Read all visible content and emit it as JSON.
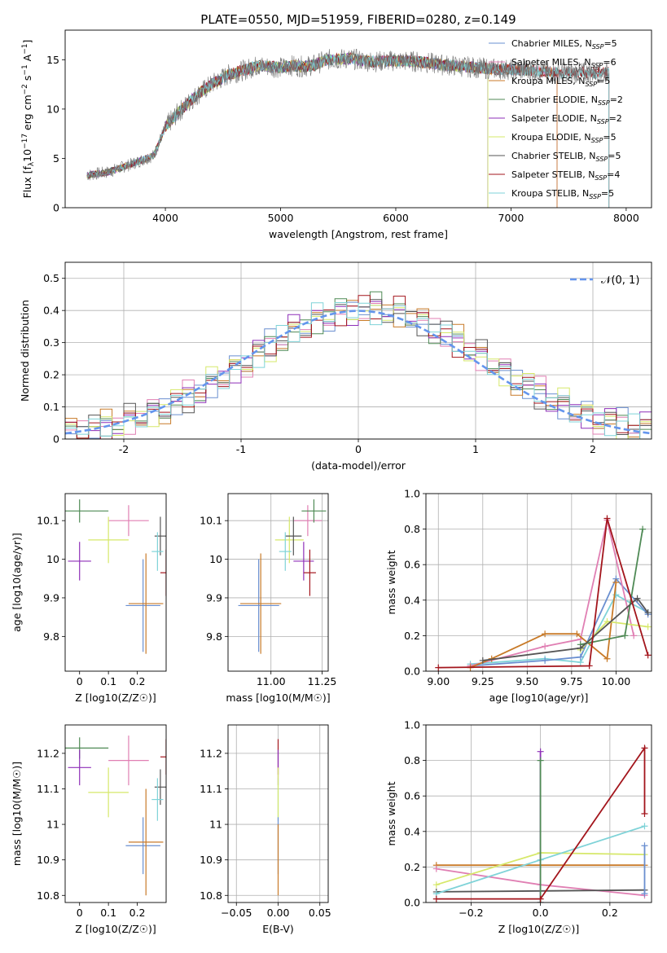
{
  "figure": {
    "title": "PLATE=0550, MJD=51959, FIBERID=0280, z=0.149"
  },
  "colors": {
    "Chabrier MILES": "#6a8fd0",
    "Salpeter MILES": "#e07fb3",
    "Kroupa MILES": "#c87a28",
    "Chabrier ELODIE": "#4f8a55",
    "Salpeter ELODIE": "#8e2fb8",
    "Kroupa ELODIE": "#d6e86a",
    "Chabrier STELIB": "#555555",
    "Salpeter STELIB": "#a3151c",
    "Kroupa STELIB": "#7fd3d8",
    "normal_curve": "#6495ed",
    "spectrum_gray": "#777777"
  },
  "chart_data": [
    {
      "id": "spectrum",
      "type": "line",
      "xlabel": "wavelength [Angstrom, rest frame]",
      "ylabel_parts": [
        "Flux [f",
        "λ",
        "10",
        "−17",
        " erg cm",
        "−2",
        " s",
        "−1",
        " A",
        "−1",
        "]"
      ],
      "xlim": [
        3130,
        8220
      ],
      "ylim": [
        0,
        18
      ],
      "xticks": [
        4000,
        5000,
        6000,
        7000,
        8000
      ],
      "yticks": [
        0,
        5,
        10,
        15
      ],
      "grid": false,
      "legend_position": "upper-right",
      "continuum": {
        "x": [
          3320,
          3500,
          3700,
          3900,
          4000,
          4100,
          4250,
          4400,
          4550,
          4700,
          4800,
          4900,
          5000,
          5100,
          5200,
          5300,
          5400,
          5600,
          5800,
          6000,
          6200,
          6400,
          6600,
          6800,
          7000,
          7200,
          7400
        ],
        "y": [
          3.3,
          3.6,
          4.4,
          5.3,
          8.2,
          9.5,
          11.2,
          12.5,
          13.5,
          14.0,
          14.4,
          14.3,
          14.2,
          14.4,
          14.3,
          14.5,
          15.0,
          15.1,
          14.8,
          14.9,
          14.8,
          14.5,
          14.3,
          14.1,
          14.0,
          13.9,
          13.7
        ]
      },
      "series": [
        {
          "name_main": "Chabrier MILES",
          "name_sub": "SSP",
          "name_tail": "=5",
          "end": 7400
        },
        {
          "name_main": "Salpeter MILES",
          "name_sub": "SSP",
          "name_tail": "=6",
          "end": 7400
        },
        {
          "name_main": "Kroupa MILES",
          "name_sub": "SSP",
          "name_tail": "=5",
          "end": 7400
        },
        {
          "name_main": "Chabrier ELODIE",
          "name_sub": "SSP",
          "name_tail": "=2",
          "end": 6800
        },
        {
          "name_main": "Salpeter ELODIE",
          "name_sub": "SSP",
          "name_tail": "=2",
          "end": 6800
        },
        {
          "name_main": "Kroupa ELODIE",
          "name_sub": "SSP",
          "name_tail": "=5",
          "end": 6800
        },
        {
          "name_main": "Chabrier STELIB",
          "name_sub": "SSP",
          "name_tail": "=5",
          "end": 7850
        },
        {
          "name_main": "Salpeter STELIB",
          "name_sub": "SSP",
          "name_tail": "=4",
          "end": 7850
        },
        {
          "name_main": "Kroupa STELIB",
          "name_sub": "SSP",
          "name_tail": "=5",
          "end": 7850
        }
      ]
    },
    {
      "id": "residuals",
      "type": "histogram",
      "xlabel": "(data-model)/error",
      "ylabel": "Normed distribution",
      "xlim": [
        -2.5,
        2.5
      ],
      "ylim": [
        0,
        0.55
      ],
      "xticks": [
        -2,
        -1,
        0,
        1,
        2
      ],
      "yticks": [
        0.0,
        0.1,
        0.2,
        0.3,
        0.4,
        0.5
      ],
      "grid": true,
      "legend_position": "upper-right",
      "normal_label": "𝒩(0, 1)",
      "bin_width": 0.1,
      "bin_start": -2.5,
      "bin_jitter": [
        0.0,
        0.015,
        -0.02,
        0.02,
        -0.01,
        0.025,
        -0.015,
        0.01,
        0.03,
        -0.025,
        0.005,
        0.02,
        -0.03,
        0.015,
        0.04,
        -0.02,
        0.01,
        0.05,
        -0.01,
        0.03,
        -0.015,
        0.02,
        -0.035,
        0.01,
        0.025,
        -0.01,
        0.015,
        -0.005,
        0.03,
        -0.02
      ]
    },
    {
      "id": "age-vs-Z",
      "type": "errorbar",
      "xlabel": "Z [log10(Z/Z☉)]",
      "ylabel": "age  [log10(age/yr)]",
      "xlim": [
        -0.05,
        0.3
      ],
      "ylim": [
        9.71,
        10.17
      ],
      "xticks": [
        0.0,
        0.1,
        0.2
      ],
      "yticks": [
        9.8,
        9.9,
        10.0,
        10.1
      ],
      "grid": false,
      "points": [
        {
          "series": "Chabrier MILES",
          "x": 0.22,
          "y": 9.88,
          "xerr": 0.06,
          "yerr": 0.12
        },
        {
          "series": "Salpeter MILES",
          "x": 0.17,
          "y": 10.1,
          "xerr": 0.07,
          "yerr": 0.04
        },
        {
          "series": "Kroupa MILES",
          "x": 0.23,
          "y": 9.885,
          "xerr": 0.06,
          "yerr": 0.13
        },
        {
          "series": "Chabrier ELODIE",
          "x": 0.0,
          "y": 10.125,
          "xerr": 0.1,
          "yerr": 0.03
        },
        {
          "series": "Salpeter ELODIE",
          "x": 0.0,
          "y": 9.995,
          "xerr": 0.04,
          "yerr": 0.05
        },
        {
          "series": "Kroupa ELODIE",
          "x": 0.1,
          "y": 10.05,
          "xerr": 0.07,
          "yerr": 0.06
        },
        {
          "series": "Chabrier STELIB",
          "x": 0.28,
          "y": 10.06,
          "xerr": 0.02,
          "yerr": 0.05
        },
        {
          "series": "Salpeter STELIB",
          "x": 0.3,
          "y": 9.965,
          "xerr": 0.02,
          "yerr": 0.06
        },
        {
          "series": "Kroupa STELIB",
          "x": 0.27,
          "y": 10.02,
          "xerr": 0.02,
          "yerr": 0.05
        }
      ]
    },
    {
      "id": "age-vs-mass",
      "type": "errorbar",
      "xlabel": "mass [log10(M/M☉)]",
      "ylabel": "",
      "xlim": [
        10.79,
        11.28
      ],
      "ylim": [
        9.71,
        10.17
      ],
      "xticks": [
        11.0,
        11.25
      ],
      "xtick_labels": [
        "11.00",
        "11.25"
      ],
      "yticks": [
        9.8,
        9.9,
        10.0,
        10.1
      ],
      "grid": true,
      "points": [
        {
          "series": "Chabrier MILES",
          "x": 10.94,
          "y": 9.88,
          "xerr": 0.1,
          "yerr": 0.12
        },
        {
          "series": "Kroupa MILES",
          "x": 10.95,
          "y": 9.885,
          "xerr": 0.1,
          "yerr": 0.13
        },
        {
          "series": "Salpeter MILES",
          "x": 11.18,
          "y": 10.1,
          "xerr": 0.07,
          "yerr": 0.04
        },
        {
          "series": "Chabrier ELODIE",
          "x": 11.21,
          "y": 10.125,
          "xerr": 0.06,
          "yerr": 0.03
        },
        {
          "series": "Kroupa ELODIE",
          "x": 11.09,
          "y": 10.05,
          "xerr": 0.07,
          "yerr": 0.06
        },
        {
          "series": "Salpeter ELODIE",
          "x": 11.16,
          "y": 9.995,
          "xerr": 0.05,
          "yerr": 0.05
        },
        {
          "series": "Chabrier STELIB",
          "x": 11.11,
          "y": 10.06,
          "xerr": 0.04,
          "yerr": 0.05
        },
        {
          "series": "Salpeter STELIB",
          "x": 11.19,
          "y": 9.965,
          "xerr": 0.03,
          "yerr": 0.06
        },
        {
          "series": "Kroupa STELIB",
          "x": 11.07,
          "y": 10.02,
          "xerr": 0.03,
          "yerr": 0.05
        }
      ]
    },
    {
      "id": "weight-vs-age",
      "type": "line",
      "xlabel": "age  [log10(age/yr)]",
      "ylabel": "mass weight",
      "xlim": [
        8.93,
        10.2
      ],
      "ylim": [
        0,
        1.0
      ],
      "xticks": [
        9.0,
        9.25,
        9.5,
        9.75,
        10.0
      ],
      "xtick_labels": [
        "9.00",
        "9.25",
        "9.50",
        "9.75",
        "10.00"
      ],
      "yticks": [
        0,
        0.2,
        0.4,
        0.6,
        0.8,
        1.0
      ],
      "ytick_labels": [
        "0.0",
        "0.2",
        "0.4",
        "0.6",
        "0.8",
        "1.0"
      ],
      "grid": true,
      "series": [
        {
          "name": "Kroupa STELIB",
          "x": [
            9.18,
            9.6,
            9.8,
            10.0,
            10.18
          ],
          "y": [
            0.04,
            0.07,
            0.05,
            0.43,
            0.33
          ]
        },
        {
          "name": "Chabrier MILES",
          "x": [
            9.18,
            9.6,
            9.8,
            10.0,
            10.18
          ],
          "y": [
            0.03,
            0.06,
            0.08,
            0.52,
            0.32
          ]
        },
        {
          "name": "Salpeter MILES",
          "x": [
            9.18,
            9.6,
            9.8,
            9.95,
            10.1
          ],
          "y": [
            0.03,
            0.14,
            0.18,
            0.85,
            0.2
          ]
        },
        {
          "name": "Kroupa MILES",
          "x": [
            9.18,
            9.3,
            9.6,
            9.78,
            9.95,
            10.0
          ],
          "y": [
            0.02,
            0.07,
            0.21,
            0.21,
            0.07,
            0.5
          ]
        },
        {
          "name": "Kroupa ELODIE",
          "x": [
            9.8,
            9.95,
            10.18
          ],
          "y": [
            0.12,
            0.28,
            0.25
          ]
        },
        {
          "name": "Chabrier ELODIE",
          "x": [
            9.8,
            10.05,
            10.15
          ],
          "y": [
            0.15,
            0.2,
            0.8
          ]
        },
        {
          "name": "Chabrier STELIB",
          "x": [
            9.25,
            9.8,
            10.12,
            10.18
          ],
          "y": [
            0.06,
            0.13,
            0.41,
            0.33
          ]
        },
        {
          "name": "Salpeter STELIB",
          "x": [
            9.0,
            9.85,
            9.95,
            10.18
          ],
          "y": [
            0.02,
            0.03,
            0.86,
            0.09
          ]
        }
      ]
    },
    {
      "id": "mass-vs-Z",
      "type": "errorbar",
      "xlabel": "Z [log10(Z/Z☉)]",
      "ylabel": "mass [log10(M/M☉)]",
      "xlim": [
        -0.05,
        0.3
      ],
      "ylim": [
        10.78,
        11.28
      ],
      "xticks": [
        0.0,
        0.1,
        0.2
      ],
      "yticks": [
        10.8,
        10.9,
        11.0,
        11.1,
        11.2
      ],
      "grid": false,
      "points": [
        {
          "series": "Chabrier MILES",
          "x": 0.22,
          "y": 10.94,
          "xerr": 0.06,
          "yerr": 0.08
        },
        {
          "series": "Kroupa MILES",
          "x": 0.23,
          "y": 10.95,
          "xerr": 0.06,
          "yerr": 0.15
        },
        {
          "series": "Salpeter MILES",
          "x": 0.17,
          "y": 11.18,
          "xerr": 0.07,
          "yerr": 0.07
        },
        {
          "series": "Chabrier ELODIE",
          "x": 0.0,
          "y": 11.215,
          "xerr": 0.1,
          "yerr": 0.03
        },
        {
          "series": "Salpeter ELODIE",
          "x": 0.0,
          "y": 11.16,
          "xerr": 0.04,
          "yerr": 0.05
        },
        {
          "series": "Kroupa ELODIE",
          "x": 0.1,
          "y": 11.09,
          "xerr": 0.07,
          "yerr": 0.07
        },
        {
          "series": "Chabrier STELIB",
          "x": 0.28,
          "y": 11.105,
          "xerr": 0.02,
          "yerr": 0.05
        },
        {
          "series": "Salpeter STELIB",
          "x": 0.3,
          "y": 11.19,
          "xerr": 0.02,
          "yerr": 0.05
        },
        {
          "series": "Kroupa STELIB",
          "x": 0.27,
          "y": 11.07,
          "xerr": 0.02,
          "yerr": 0.06
        }
      ]
    },
    {
      "id": "mass-vs-ebv",
      "type": "errorbar",
      "xlabel": "E(B-V)",
      "ylabel": "",
      "xlim": [
        -0.06,
        0.06
      ],
      "ylim": [
        10.78,
        11.28
      ],
      "xticks": [
        -0.05,
        0.0,
        0.05
      ],
      "xtick_labels": [
        "−0.05",
        "0.00",
        "0.05"
      ],
      "yticks": [
        10.8,
        10.9,
        11.0,
        11.1,
        11.2
      ],
      "grid": true,
      "points": [
        {
          "series": "Salpeter STELIB",
          "x": 0.0,
          "y": 11.19,
          "xerr": 0.0,
          "yerr": 0.05
        },
        {
          "series": "Salpeter ELODIE",
          "x": 0.0,
          "y": 11.16,
          "xerr": 0.0,
          "yerr": 0.05
        },
        {
          "series": "Kroupa STELIB",
          "x": 0.0,
          "y": 11.07,
          "xerr": 0.0,
          "yerr": 0.06
        },
        {
          "series": "Kroupa ELODIE",
          "x": 0.0,
          "y": 11.09,
          "xerr": 0.0,
          "yerr": 0.07
        },
        {
          "series": "Chabrier MILES",
          "x": 0.0,
          "y": 10.94,
          "xerr": 0.0,
          "yerr": 0.08
        },
        {
          "series": "Kroupa MILES",
          "x": 0.0,
          "y": 10.9,
          "xerr": 0.0,
          "yerr": 0.1
        }
      ]
    },
    {
      "id": "weight-vs-Z",
      "type": "line",
      "xlabel": "Z [log10(Z/Z☉)]",
      "ylabel": "mass weight",
      "xlim": [
        -0.33,
        0.32
      ],
      "ylim": [
        0,
        1.0
      ],
      "xticks": [
        -0.2,
        0.0,
        0.2
      ],
      "xtick_labels": [
        "−0.2",
        "0.0",
        "0.2"
      ],
      "yticks": [
        0,
        0.2,
        0.4,
        0.6,
        0.8,
        1.0
      ],
      "ytick_labels": [
        "0.0",
        "0.2",
        "0.4",
        "0.6",
        "0.8",
        "1.0"
      ],
      "grid": true,
      "series": [
        {
          "name": "Kroupa MILES",
          "x": [
            -0.3,
            0.3
          ],
          "y": [
            0.21,
            0.21
          ]
        },
        {
          "name": "Salpeter MILES",
          "x": [
            -0.3,
            0.0,
            0.3
          ],
          "y": [
            0.19,
            0.1,
            0.04
          ]
        },
        {
          "name": "Chabrier STELIB",
          "x": [
            -0.3,
            0.3
          ],
          "y": [
            0.06,
            0.07
          ]
        },
        {
          "name": "Kroupa ELODIE",
          "x": [
            -0.3,
            0.0,
            0.3
          ],
          "y": [
            0.1,
            0.28,
            0.27
          ]
        },
        {
          "name": "Kroupa STELIB",
          "x": [
            -0.3,
            0.0,
            0.3
          ],
          "y": [
            0.05,
            0.24,
            0.43
          ]
        },
        {
          "name": "Salpeter ELODIE",
          "x": [
            0.0,
            0.0
          ],
          "y": [
            0.0,
            0.85
          ]
        },
        {
          "name": "Chabrier ELODIE",
          "x": [
            0.0,
            0.0
          ],
          "y": [
            0.0,
            0.8
          ]
        },
        {
          "name": "Salpeter STELIB",
          "x": [
            -0.3,
            0.0,
            0.3,
            0.3
          ],
          "y": [
            0.02,
            0.02,
            0.87,
            0.5
          ]
        },
        {
          "name": "Chabrier MILES",
          "x": [
            0.3,
            0.3
          ],
          "y": [
            0.05,
            0.32
          ]
        }
      ]
    }
  ]
}
